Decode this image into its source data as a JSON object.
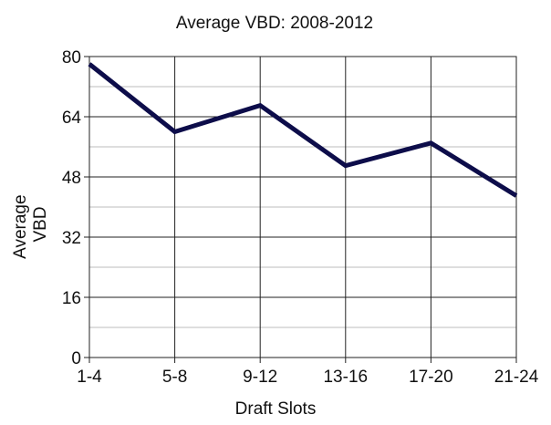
{
  "chart_data": {
    "type": "line",
    "title": "Average VBD: 2008-2012",
    "xlabel": "Draft Slots",
    "ylabel_lines": [
      "Average",
      "VBD"
    ],
    "categories": [
      "1-4",
      "5-8",
      "9-12",
      "13-16",
      "17-20",
      "21-24"
    ],
    "series": [
      {
        "values": [
          78,
          60,
          67,
          51,
          57,
          43
        ]
      }
    ],
    "ylim": [
      0,
      80
    ],
    "yticks": [
      0,
      16,
      32,
      48,
      64,
      80
    ],
    "minor_step": 8,
    "grid": true,
    "legend": "none",
    "line_color": "#0d0d4a"
  }
}
